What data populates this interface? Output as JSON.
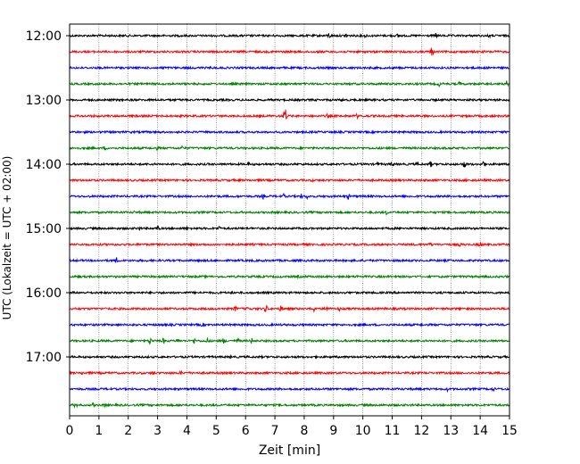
{
  "chart_data": {
    "type": "line",
    "xlabel": "Zeit  [min]",
    "ylabel": "UTC (Lokalzeit = UTC + 02:00)",
    "xlim": [
      0,
      15
    ],
    "xticks": [
      0,
      1,
      2,
      3,
      4,
      5,
      6,
      7,
      8,
      9,
      10,
      11,
      12,
      13,
      14,
      15
    ],
    "xtick_labels": [
      "0",
      "1",
      "2",
      "3",
      "4",
      "5",
      "6",
      "7",
      "8",
      "9",
      "10",
      "11",
      "12",
      "13",
      "14",
      "15"
    ],
    "ytick_labels": [
      "12:00",
      "13:00",
      "14:00",
      "15:00",
      "16:00",
      "17:00"
    ],
    "ytick_hours": [
      12,
      13,
      14,
      15,
      16,
      17
    ],
    "start_hour": 12.0,
    "trace_interval_min": 15,
    "grid": "vertical dotted",
    "series_colors": [
      "#000000",
      "#ff0000",
      "#0000ff",
      "#008000"
    ],
    "traces": [
      {
        "color": "#000000",
        "events": [
          [
            8.85,
            4
          ],
          [
            9.45,
            5
          ],
          [
            10.1,
            3
          ],
          [
            11.2,
            3
          ],
          [
            12.5,
            4
          ],
          [
            14.3,
            3
          ]
        ]
      },
      {
        "color": "#ff0000",
        "events": [
          [
            12.35,
            6
          ],
          [
            14.5,
            2
          ]
        ]
      },
      {
        "color": "#0000ff",
        "events": [
          [
            3.2,
            3
          ],
          [
            4.8,
            2
          ],
          [
            9.0,
            2
          ]
        ]
      },
      {
        "color": "#008000",
        "events": [
          [
            10.6,
            2
          ],
          [
            12.6,
            3
          ],
          [
            13.3,
            3
          ],
          [
            14.9,
            4
          ]
        ]
      },
      {
        "color": "#000000",
        "events": [
          [
            2.2,
            2
          ],
          [
            9.3,
            2
          ]
        ]
      },
      {
        "color": "#ff0000",
        "events": [
          [
            6.5,
            2
          ],
          [
            7.35,
            11
          ],
          [
            8.8,
            3
          ],
          [
            9.8,
            3
          ]
        ]
      },
      {
        "color": "#0000ff",
        "events": [
          [
            5.3,
            2
          ],
          [
            11.2,
            2
          ]
        ]
      },
      {
        "color": "#008000",
        "events": [
          [
            1.2,
            3
          ],
          [
            3.0,
            3
          ],
          [
            3.85,
            3
          ],
          [
            6.4,
            2
          ]
        ]
      },
      {
        "color": "#000000",
        "events": [
          [
            6.1,
            3
          ],
          [
            10.5,
            3
          ],
          [
            11.0,
            3
          ],
          [
            11.85,
            3
          ],
          [
            12.3,
            4
          ],
          [
            13.45,
            5
          ],
          [
            14.1,
            5
          ]
        ]
      },
      {
        "color": "#ff0000",
        "events": [
          [
            8.3,
            2
          ],
          [
            13.5,
            2
          ]
        ]
      },
      {
        "color": "#0000ff",
        "events": [
          [
            6.6,
            3
          ],
          [
            7.3,
            3
          ],
          [
            7.9,
            3
          ],
          [
            8.1,
            3
          ],
          [
            9.5,
            4
          ]
        ]
      },
      {
        "color": "#008000",
        "events": [
          [
            2.2,
            2
          ],
          [
            10.8,
            3
          ]
        ]
      },
      {
        "color": "#000000",
        "events": [
          [
            2.35,
            4
          ],
          [
            3.0,
            4
          ],
          [
            4.0,
            3
          ],
          [
            5.1,
            3
          ]
        ]
      },
      {
        "color": "#ff0000",
        "events": [
          [
            12.3,
            3
          ],
          [
            13.3,
            3
          ],
          [
            14.0,
            4
          ]
        ]
      },
      {
        "color": "#0000ff",
        "events": [
          [
            1.6,
            4
          ],
          [
            13.0,
            2
          ]
        ]
      },
      {
        "color": "#008000",
        "events": [
          [
            7.8,
            2
          ],
          [
            9.8,
            2
          ]
        ]
      },
      {
        "color": "#000000",
        "events": [
          [
            6.6,
            2
          ]
        ]
      },
      {
        "color": "#ff0000",
        "events": [
          [
            5.65,
            4
          ],
          [
            6.1,
            4
          ],
          [
            6.7,
            5
          ],
          [
            7.2,
            4
          ],
          [
            8.3,
            5
          ],
          [
            8.75,
            6
          ],
          [
            9.2,
            3
          ]
        ]
      },
      {
        "color": "#0000ff",
        "events": [
          [
            4.5,
            2
          ],
          [
            12.0,
            2
          ]
        ]
      },
      {
        "color": "#008000",
        "events": [
          [
            2.75,
            5
          ],
          [
            3.2,
            4
          ],
          [
            3.7,
            4
          ],
          [
            4.25,
            4
          ],
          [
            4.7,
            4
          ],
          [
            5.25,
            4
          ],
          [
            5.75,
            4
          ],
          [
            6.2,
            4
          ]
        ]
      },
      {
        "color": "#000000",
        "events": [
          [
            5.5,
            2
          ]
        ]
      },
      {
        "color": "#ff0000",
        "events": [
          [
            0.45,
            3
          ],
          [
            2.85,
            3
          ],
          [
            3.8,
            3
          ]
        ]
      },
      {
        "color": "#0000ff",
        "events": [
          [
            12.9,
            3
          ],
          [
            14.45,
            3
          ]
        ]
      },
      {
        "color": "#008000",
        "events": [
          [
            0.2,
            4
          ],
          [
            0.8,
            3
          ],
          [
            1.2,
            3
          ],
          [
            6.5,
            2
          ]
        ]
      }
    ]
  }
}
